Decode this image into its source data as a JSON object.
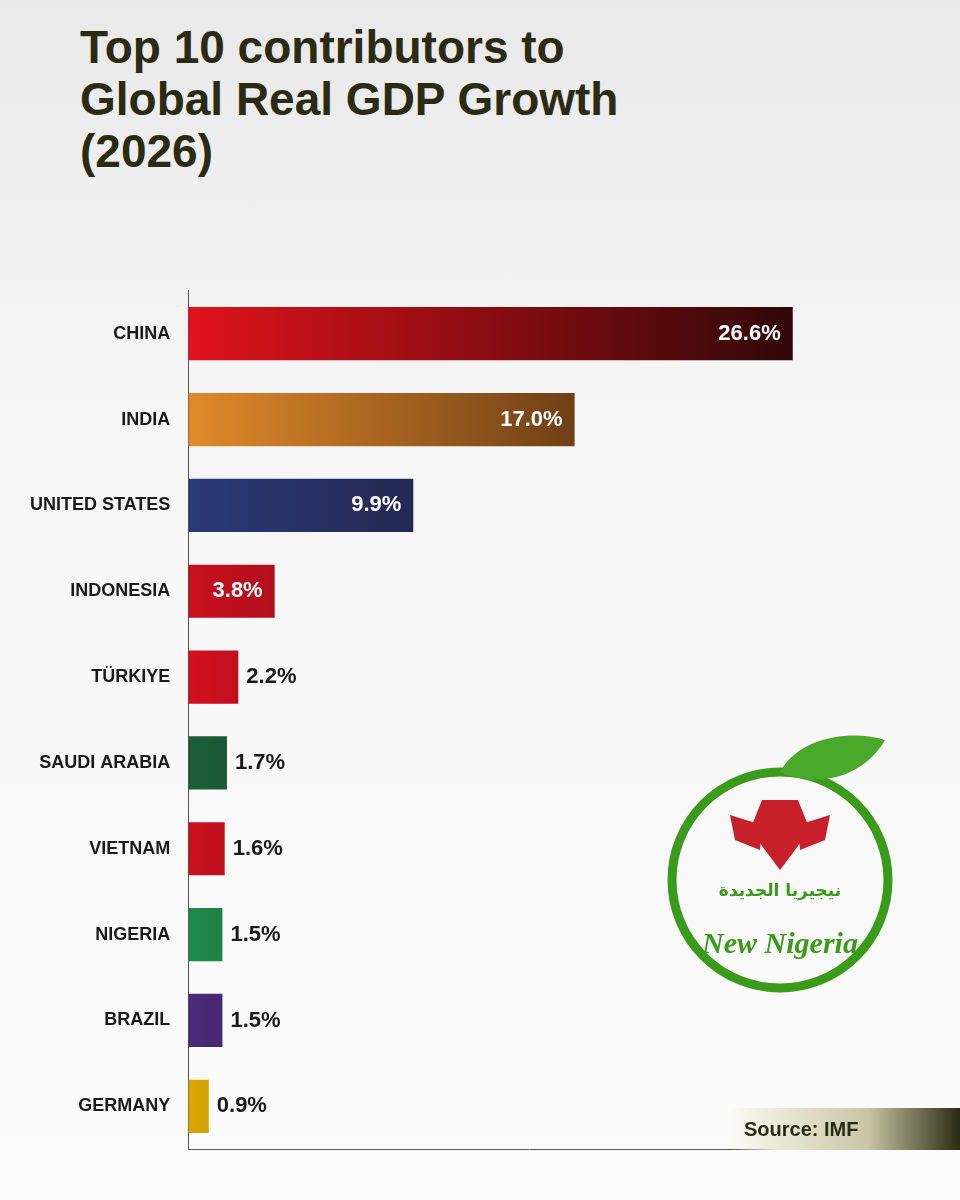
{
  "chart_data": {
    "type": "bar",
    "title": "Top 10 contributors to Global Real GDP Growth (2026)",
    "orientation": "horizontal",
    "categories": [
      "CHINA",
      "INDIA",
      "UNITED STATES",
      "INDONESIA",
      "TÜRKIYE",
      "SAUDI ARABIA",
      "VIETNAM",
      "NIGERIA",
      "BRAZIL",
      "GERMANY"
    ],
    "values": [
      26.6,
      17.0,
      9.9,
      3.8,
      2.2,
      1.7,
      1.6,
      1.5,
      1.5,
      0.9
    ],
    "value_labels": [
      "26.6%",
      "17.0%",
      "9.9%",
      "3.8%",
      "2.2%",
      "1.7%",
      "1.6%",
      "1.5%",
      "1.5%",
      "0.9%"
    ],
    "colors": [
      "#e0121b",
      "#e08a2a",
      "#2a3a78",
      "#c8101e",
      "#d0101e",
      "#1b5e3a",
      "#c8101e",
      "#1e8a4a",
      "#4a2a7a",
      "#d8a800"
    ],
    "data_labels": true,
    "tick_labels": "y",
    "grid": false,
    "xlim": [
      0,
      30
    ],
    "source": "Source: IMF",
    "logo": {
      "arabic": "نيجيريا الجديدة",
      "text": "New Nigeria"
    }
  }
}
